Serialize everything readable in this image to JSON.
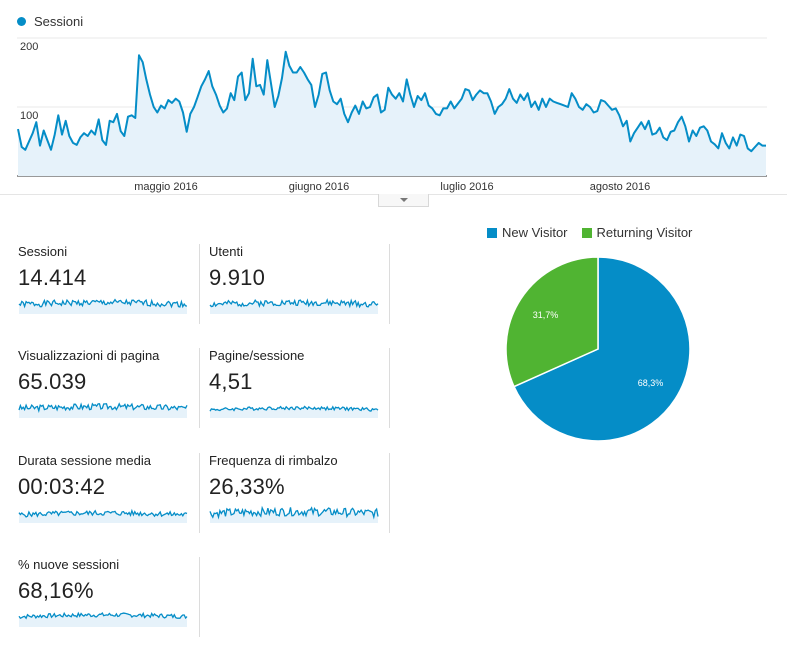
{
  "main_chart": {
    "legend_label": "Sessioni",
    "color": "#058dc7",
    "fill": "#e6f2fa",
    "y_tick_200": "200",
    "y_tick_100": "100",
    "x_labels": [
      "maggio 2016",
      "giugno 2016",
      "luglio 2016",
      "agosto 2016"
    ]
  },
  "chart_data": [
    {
      "type": "area",
      "ylim": [
        0,
        200
      ],
      "series": [
        {
          "name": "Sessioni",
          "values": [
            68,
            42,
            38,
            50,
            62,
            78,
            44,
            66,
            52,
            38,
            60,
            88,
            60,
            80,
            58,
            48,
            45,
            56,
            62,
            58,
            66,
            60,
            82,
            52,
            45,
            80,
            78,
            90,
            65,
            58,
            86,
            88,
            84,
            175,
            165,
            140,
            118,
            100,
            92,
            102,
            98,
            110,
            106,
            112,
            108,
            92,
            64,
            90,
            100,
            115,
            130,
            140,
            152,
            130,
            118,
            102,
            92,
            98,
            120,
            110,
            144,
            150,
            110,
            120,
            170,
            130,
            132,
            118,
            168,
            134,
            100,
            116,
            142,
            180,
            160,
            150,
            150,
            158,
            150,
            140,
            132,
            100,
            118,
            148,
            150,
            124,
            108,
            104,
            112,
            90,
            78,
            92,
            102,
            90,
            108,
            98,
            100,
            114,
            118,
            92,
            96,
            128,
            118,
            112,
            120,
            108,
            140,
            118,
            100,
            116,
            110,
            120,
            102,
            98,
            90,
            88,
            98,
            98,
            108,
            98,
            105,
            112,
            126,
            124,
            110,
            118,
            124,
            120,
            120,
            108,
            90,
            100,
            104,
            112,
            126,
            112,
            106,
            118,
            110,
            120,
            100,
            108,
            96,
            112,
            100,
            112,
            108,
            106,
            104,
            102,
            100,
            120,
            112,
            100,
            96,
            104,
            100,
            92,
            94,
            110,
            108,
            102,
            96,
            98,
            88,
            72,
            80,
            50,
            62,
            70,
            78,
            68,
            80,
            60,
            62,
            70,
            56,
            52,
            64,
            66,
            78,
            86,
            72,
            50,
            66,
            58,
            70,
            72,
            66,
            50,
            46,
            40,
            62,
            48,
            40,
            56,
            44,
            60,
            58,
            40,
            36,
            42,
            48,
            44,
            44
          ]
        }
      ]
    },
    {
      "type": "pie",
      "title": "",
      "series": [
        {
          "name": "New Visitor",
          "value": 68.3,
          "label": "68,3%",
          "color": "#058dc7"
        },
        {
          "name": "Returning Visitor",
          "value": 31.7,
          "label": "31,7%",
          "color": "#50b432"
        }
      ]
    }
  ],
  "metrics": [
    {
      "label": "Sessioni",
      "value": "14.414"
    },
    {
      "label": "Utenti",
      "value": "9.910"
    },
    {
      "label": "Visualizzazioni di pagina",
      "value": "65.039"
    },
    {
      "label": "Pagine/sessione",
      "value": "4,51"
    },
    {
      "label": "Durata sessione media",
      "value": "00:03:42"
    },
    {
      "label": "Frequenza di rimbalzo",
      "value": "26,33%"
    },
    {
      "label": "% nuove sessioni",
      "value": "68,16%"
    }
  ],
  "pie_legend": [
    {
      "label": "New Visitor",
      "color": "#058dc7"
    },
    {
      "label": "Returning Visitor",
      "color": "#50b432"
    }
  ],
  "collapse_icon": "chevron-down-icon"
}
